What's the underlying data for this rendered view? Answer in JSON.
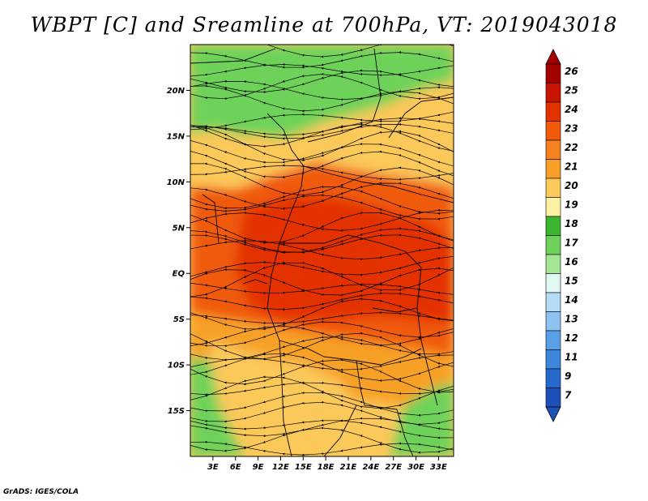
{
  "title": "WBPT [C] and Sreamline at 700hPa, VT: 2019043018",
  "credit": "GrADS: IGES/COLA",
  "map": {
    "variable": "Wet-bulb potential temperature",
    "units": "C",
    "level": "700hPa",
    "valid_time": "2019043018",
    "lon_range": [
      0,
      35
    ],
    "lat_range": [
      -20,
      25
    ],
    "lat_ticks": [
      {
        "value": 20,
        "label": "20N"
      },
      {
        "value": 15,
        "label": "15N"
      },
      {
        "value": 10,
        "label": "10N"
      },
      {
        "value": 5,
        "label": "5N"
      },
      {
        "value": 0,
        "label": "EQ"
      },
      {
        "value": -5,
        "label": "5S"
      },
      {
        "value": -10,
        "label": "10S"
      },
      {
        "value": -15,
        "label": "15S"
      }
    ],
    "lon_ticks": [
      {
        "value": 3,
        "label": "3E"
      },
      {
        "value": 6,
        "label": "6E"
      },
      {
        "value": 9,
        "label": "9E"
      },
      {
        "value": 12,
        "label": "12E"
      },
      {
        "value": 15,
        "label": "15E"
      },
      {
        "value": 18,
        "label": "18E"
      },
      {
        "value": 21,
        "label": "21E"
      },
      {
        "value": 24,
        "label": "24E"
      },
      {
        "value": 27,
        "label": "27E"
      },
      {
        "value": 30,
        "label": "30E"
      },
      {
        "value": 33,
        "label": "33E"
      }
    ],
    "regions": [
      {
        "name": "northern-green-band",
        "value": 17
      },
      {
        "name": "sahel-yellow-band",
        "value": 19.5
      },
      {
        "name": "central-orange-core",
        "value": 22.5
      },
      {
        "name": "equatorial-red-core",
        "value": 23.5
      },
      {
        "name": "southern-orange-zone",
        "value": 21
      },
      {
        "name": "southern-yellow-zone",
        "value": 20
      },
      {
        "name": "southwest-green-zone",
        "value": 17
      },
      {
        "name": "southeast-green-zone",
        "value": 17
      }
    ],
    "streamline_flow": "predominantly westward (easterly) across central Africa"
  },
  "colorbar": {
    "labels": [
      "26",
      "25",
      "24",
      "23",
      "22",
      "21",
      "20",
      "19",
      "18",
      "17",
      "16",
      "15",
      "14",
      "13",
      "12",
      "11",
      "9",
      "7"
    ],
    "colors": [
      "#a50000",
      "#c81400",
      "#e33200",
      "#f05a0a",
      "#f5821e",
      "#f7a028",
      "#fbc85a",
      "#fdf0a0",
      "#3cb432",
      "#6ed25a",
      "#a5e695",
      "#e0f8f0",
      "#b4dcf5",
      "#8cc3f0",
      "#5aa0e6",
      "#3c87dc",
      "#2869cd",
      "#1e50b9"
    ]
  }
}
